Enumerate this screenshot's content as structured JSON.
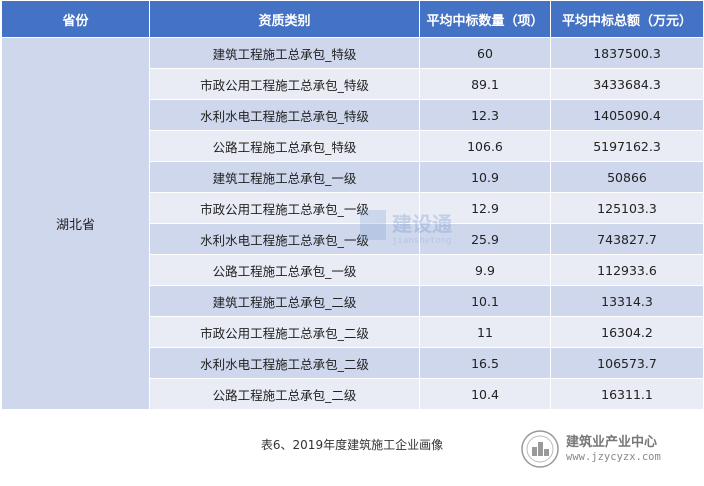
{
  "table": {
    "headers": [
      "省份",
      "资质类别",
      "平均中标数量（项）",
      "平均中标总额（万元）"
    ],
    "province": "湖北省",
    "rows": [
      {
        "category": "建筑工程施工总承包_特级",
        "count": "60",
        "amount": "1837500.3"
      },
      {
        "category": "市政公用工程施工总承包_特级",
        "count": "89.1",
        "amount": "3433684.3"
      },
      {
        "category": "水利水电工程施工总承包_特级",
        "count": "12.3",
        "amount": "1405090.4"
      },
      {
        "category": "公路工程施工总承包_特级",
        "count": "106.6",
        "amount": "5197162.3"
      },
      {
        "category": "建筑工程施工总承包_一级",
        "count": "10.9",
        "amount": "50866"
      },
      {
        "category": "市政公用工程施工总承包_一级",
        "count": "12.9",
        "amount": "125103.3"
      },
      {
        "category": "水利水电工程施工总承包_一级",
        "count": "25.9",
        "amount": "743827.7"
      },
      {
        "category": "公路工程施工总承包_一级",
        "count": "9.9",
        "amount": "112933.6"
      },
      {
        "category": "建筑工程施工总承包_二级",
        "count": "10.1",
        "amount": "13314.3"
      },
      {
        "category": "市政公用工程施工总承包_二级",
        "count": "11",
        "amount": "16304.2"
      },
      {
        "category": "水利水电工程施工总承包_二级",
        "count": "16.5",
        "amount": "106573.7"
      },
      {
        "category": "公路工程施工总承包_二级",
        "count": "10.4",
        "amount": "16311.1"
      }
    ]
  },
  "caption": "表6、2019年度建筑施工企业画像",
  "logo": {
    "name": "建筑业产业中心",
    "url": "www.jzycyzx.com"
  },
  "watermark": {
    "text": "建设通",
    "sub": "jianshetong"
  },
  "colors": {
    "header_bg": "#4472c4",
    "row_dark": "#cfd7ec",
    "row_light": "#e9ecf5"
  }
}
